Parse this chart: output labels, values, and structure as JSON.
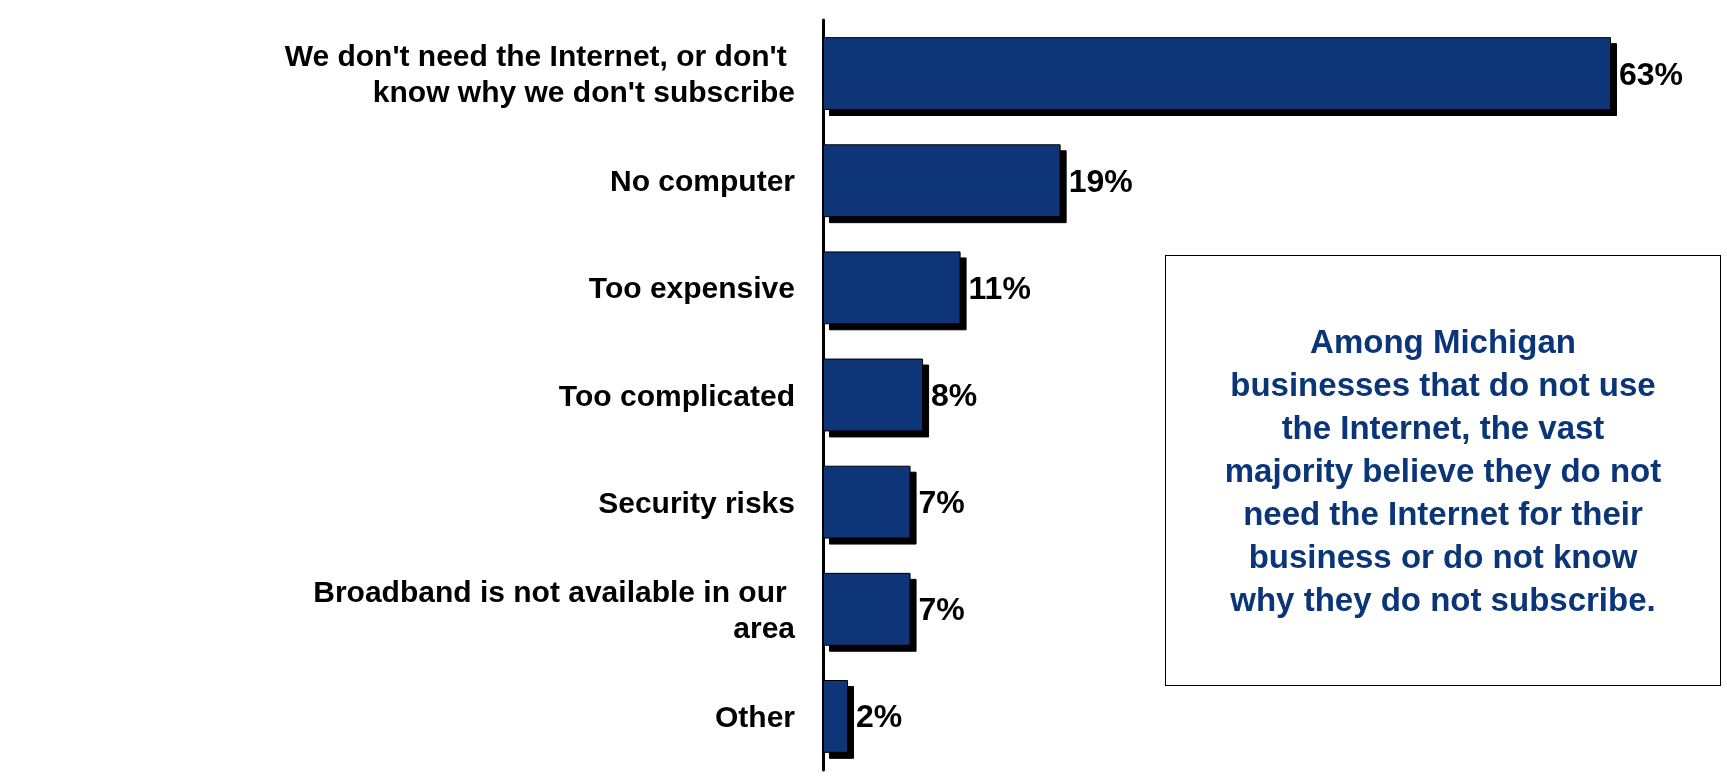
{
  "chart_data": {
    "type": "bar",
    "orientation": "horizontal",
    "categories": [
      "We don't need the Internet, or don't know why we don't subscribe",
      "No computer",
      "Too expensive",
      "Too complicated",
      "Security risks",
      "Broadband is not available in our area",
      "Other"
    ],
    "values": [
      63,
      19,
      11,
      8,
      7,
      7,
      2
    ],
    "value_labels": [
      "63%",
      "19%",
      "11%",
      "8%",
      "7%",
      "7%",
      "2%"
    ],
    "color": "#0a3578",
    "annotations": [
      "Among Michigan businesses that do not use the Internet, the vast majority believe they do not need the Internet for their business or do not know why they do not subscribe."
    ]
  }
}
